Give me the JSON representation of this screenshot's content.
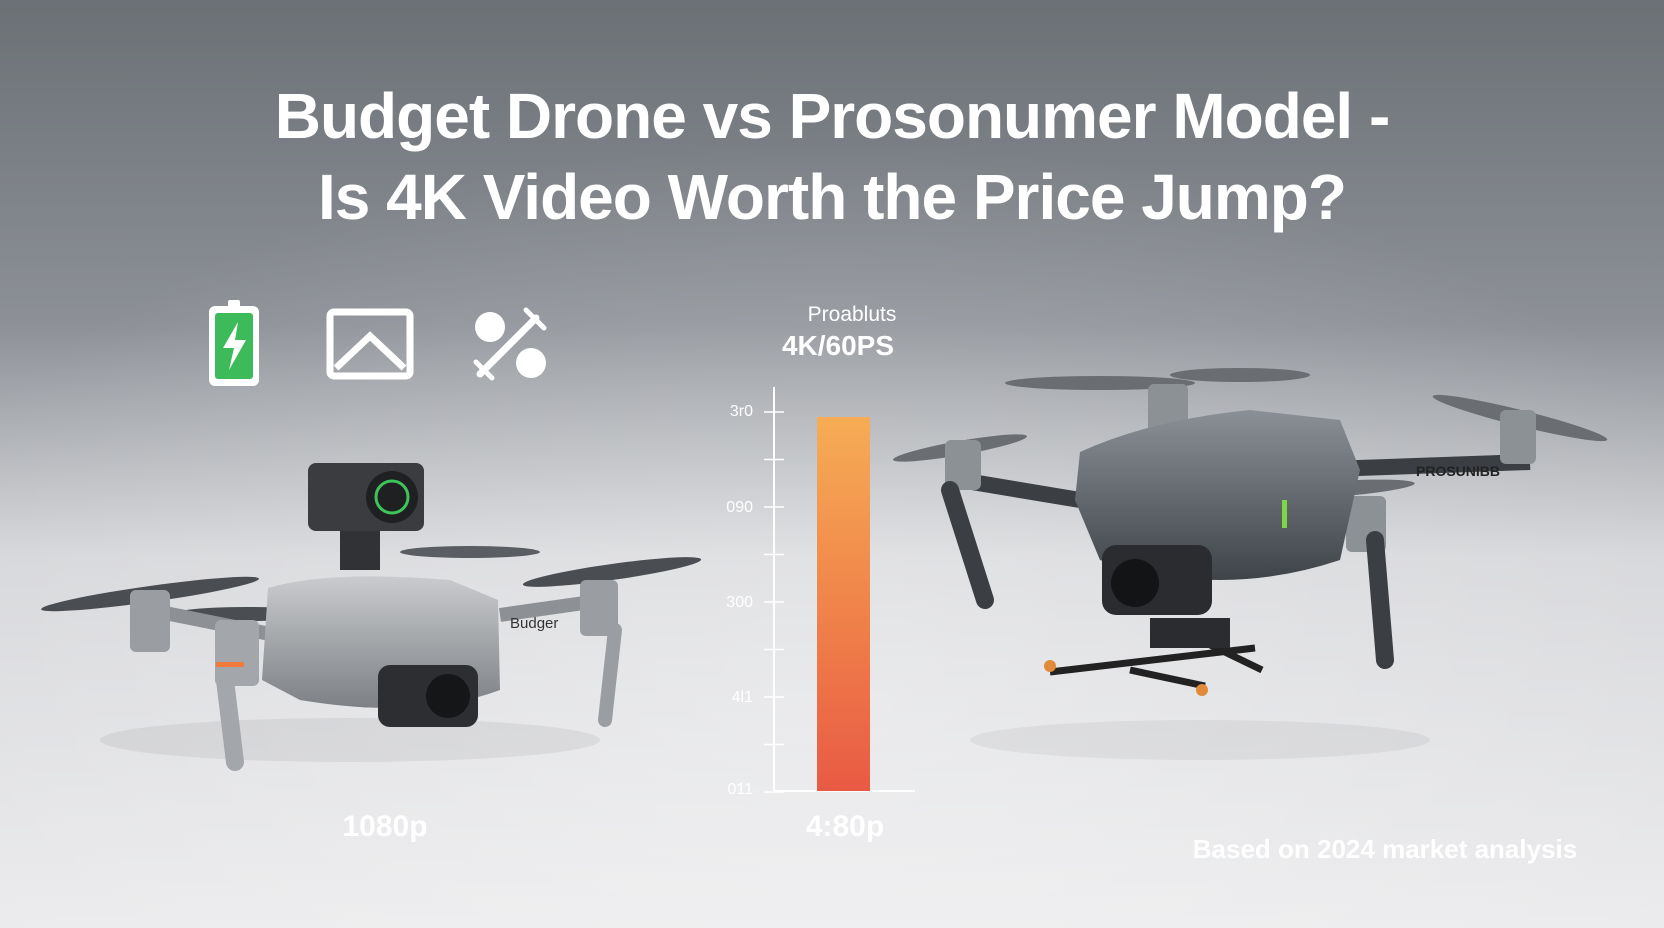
{
  "title": {
    "lines": [
      "Budget Drone vs Prosonumer Model -",
      "Is 4K Video Worth the Price Jump?"
    ]
  },
  "bar_panel": {
    "header": "Proabluts",
    "subheader": "4K/60PS",
    "axis_labels": [
      "3r0",
      "090",
      "300",
      "4l1",
      "011"
    ],
    "bar_label": "4:80p"
  },
  "left_drone": {
    "body_text": "Budger",
    "label": "1080p"
  },
  "right_drone": {
    "body_text": "PROSUNIBB"
  },
  "footnote": "Based on 2024 market analysis"
}
